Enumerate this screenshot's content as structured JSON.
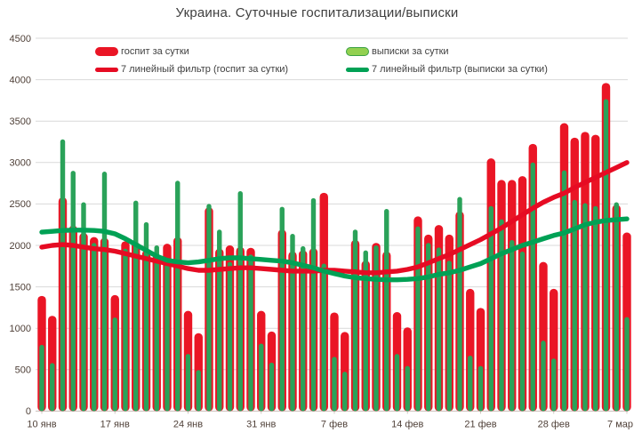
{
  "title": "Украина. Суточные госпитализации/выписки",
  "legend": {
    "hosp_bar": "госпит за сутки",
    "disch_bar": "выписки за сутки",
    "hosp_line": "7 линейный фильтр (госпит за сутки)",
    "disch_line": "7 линейный фильтр (выписки за сутки)"
  },
  "colors": {
    "hosp_bar": "#ea1525",
    "disch_bar": "#2aa259",
    "hosp_line": "#e60b23",
    "disch_line": "#00a155",
    "disch_swatch_fill": "#92d050",
    "disch_swatch_border": "#3ba144",
    "grid": "#d9d9d9",
    "axis_line": "#cfc5c0",
    "axis_text": "#4f4038",
    "title_text": "#3f3f3f",
    "legend_text": "#404040",
    "background": "#ffffff"
  },
  "chart_data": {
    "type": "bar",
    "title": "Украина. Суточные госпитализации/выписки",
    "xlabel": "",
    "ylabel": "",
    "ylim": [
      0,
      4500
    ],
    "y_ticks": [
      0,
      500,
      1000,
      1500,
      2000,
      2500,
      3000,
      3500,
      4000,
      4500
    ],
    "x_tick_labels": [
      "10 янв",
      "17 янв",
      "24 янв",
      "31 янв",
      "7 фев",
      "14 фев",
      "21 фев",
      "28 фев",
      "7 мар"
    ],
    "x_tick_days": [
      0,
      7,
      14,
      21,
      28,
      35,
      42,
      49,
      56
    ],
    "grid": true,
    "legend_position": "top",
    "x": [
      "10 янв",
      "11 янв",
      "12 янв",
      "13 янв",
      "14 янв",
      "15 янв",
      "16 янв",
      "17 янв",
      "18 янв",
      "19 янв",
      "20 янв",
      "21 янв",
      "22 янв",
      "23 янв",
      "24 янв",
      "25 янв",
      "26 янв",
      "27 янв",
      "28 янв",
      "29 янв",
      "30 янв",
      "31 янв",
      "1 фев",
      "2 фев",
      "3 фев",
      "4 фев",
      "5 фев",
      "6 фев",
      "7 фев",
      "8 фев",
      "9 фев",
      "10 фев",
      "11 фев",
      "12 фев",
      "13 фев",
      "14 фев",
      "15 фев",
      "16 фев",
      "17 фев",
      "18 фев",
      "19 фев",
      "20 фев",
      "21 фев",
      "22 фев",
      "23 фев",
      "24 фев",
      "25 фев",
      "26 фев",
      "27 фев",
      "28 фев",
      "1 мар",
      "2 мар",
      "3 мар",
      "4 мар",
      "5 мар",
      "6 мар",
      "7 мар"
    ],
    "series": [
      {
        "name": "госпит за сутки",
        "type": "bar",
        "color_key": "hosp_bar",
        "values": [
          1390,
          1150,
          2580,
          2240,
          2150,
          2100,
          2090,
          1400,
          2050,
          2040,
          1940,
          1890,
          2020,
          2100,
          1210,
          940,
          2460,
          1960,
          2000,
          1980,
          1970,
          1210,
          960,
          2190,
          1925,
          1940,
          1965,
          2635,
          1190,
          955,
          2065,
          1815,
          2030,
          1925,
          1195,
          1010,
          2350,
          2130,
          2245,
          2130,
          2410,
          1475,
          1245,
          3050,
          2790,
          2790,
          2835,
          3225,
          1800,
          1475,
          3475,
          3300,
          3370,
          3335,
          3960,
          2490,
          2155
        ]
      },
      {
        "name": "выписки за сутки",
        "type": "bar",
        "color_key": "disch_bar",
        "values": [
          800,
          580,
          3280,
          2900,
          2520,
          2030,
          2890,
          1130,
          1960,
          2540,
          2280,
          2000,
          1850,
          2780,
          690,
          495,
          2500,
          2190,
          1800,
          2655,
          1890,
          815,
          585,
          2465,
          2140,
          1990,
          2570,
          1780,
          655,
          475,
          2190,
          1940,
          2000,
          2440,
          690,
          545,
          2230,
          2030,
          1975,
          1815,
          2585,
          670,
          545,
          2475,
          2315,
          2065,
          1925,
          3000,
          850,
          635,
          2905,
          2550,
          2510,
          2475,
          3765,
          2520,
          1135
        ]
      },
      {
        "name": "7 линейный фильтр (госпит за сутки)",
        "type": "line",
        "color_key": "hosp_line",
        "values": [
          1980,
          2000,
          2010,
          2000,
          1980,
          1960,
          1950,
          1930,
          1900,
          1870,
          1840,
          1810,
          1780,
          1750,
          1720,
          1700,
          1700,
          1710,
          1720,
          1730,
          1730,
          1720,
          1710,
          1700,
          1690,
          1690,
          1690,
          1700,
          1700,
          1690,
          1680,
          1670,
          1670,
          1680,
          1690,
          1710,
          1740,
          1790,
          1840,
          1890,
          1950,
          2010,
          2070,
          2140,
          2210,
          2290,
          2370,
          2450,
          2520,
          2580,
          2630,
          2700,
          2760,
          2820,
          2880,
          2940,
          3000
        ]
      },
      {
        "name": "7 линейный фильтр (выписки за сутки)",
        "type": "line",
        "color_key": "disch_line",
        "values": [
          2160,
          2170,
          2180,
          2185,
          2185,
          2180,
          2170,
          2140,
          2080,
          2010,
          1940,
          1870,
          1820,
          1800,
          1790,
          1800,
          1820,
          1840,
          1850,
          1850,
          1840,
          1830,
          1820,
          1810,
          1790,
          1760,
          1730,
          1690,
          1660,
          1630,
          1610,
          1600,
          1590,
          1585,
          1585,
          1590,
          1600,
          1620,
          1650,
          1670,
          1700,
          1740,
          1780,
          1840,
          1900,
          1950,
          2000,
          2040,
          2080,
          2120,
          2150,
          2200,
          2250,
          2280,
          2300,
          2310,
          2320
        ]
      }
    ]
  }
}
